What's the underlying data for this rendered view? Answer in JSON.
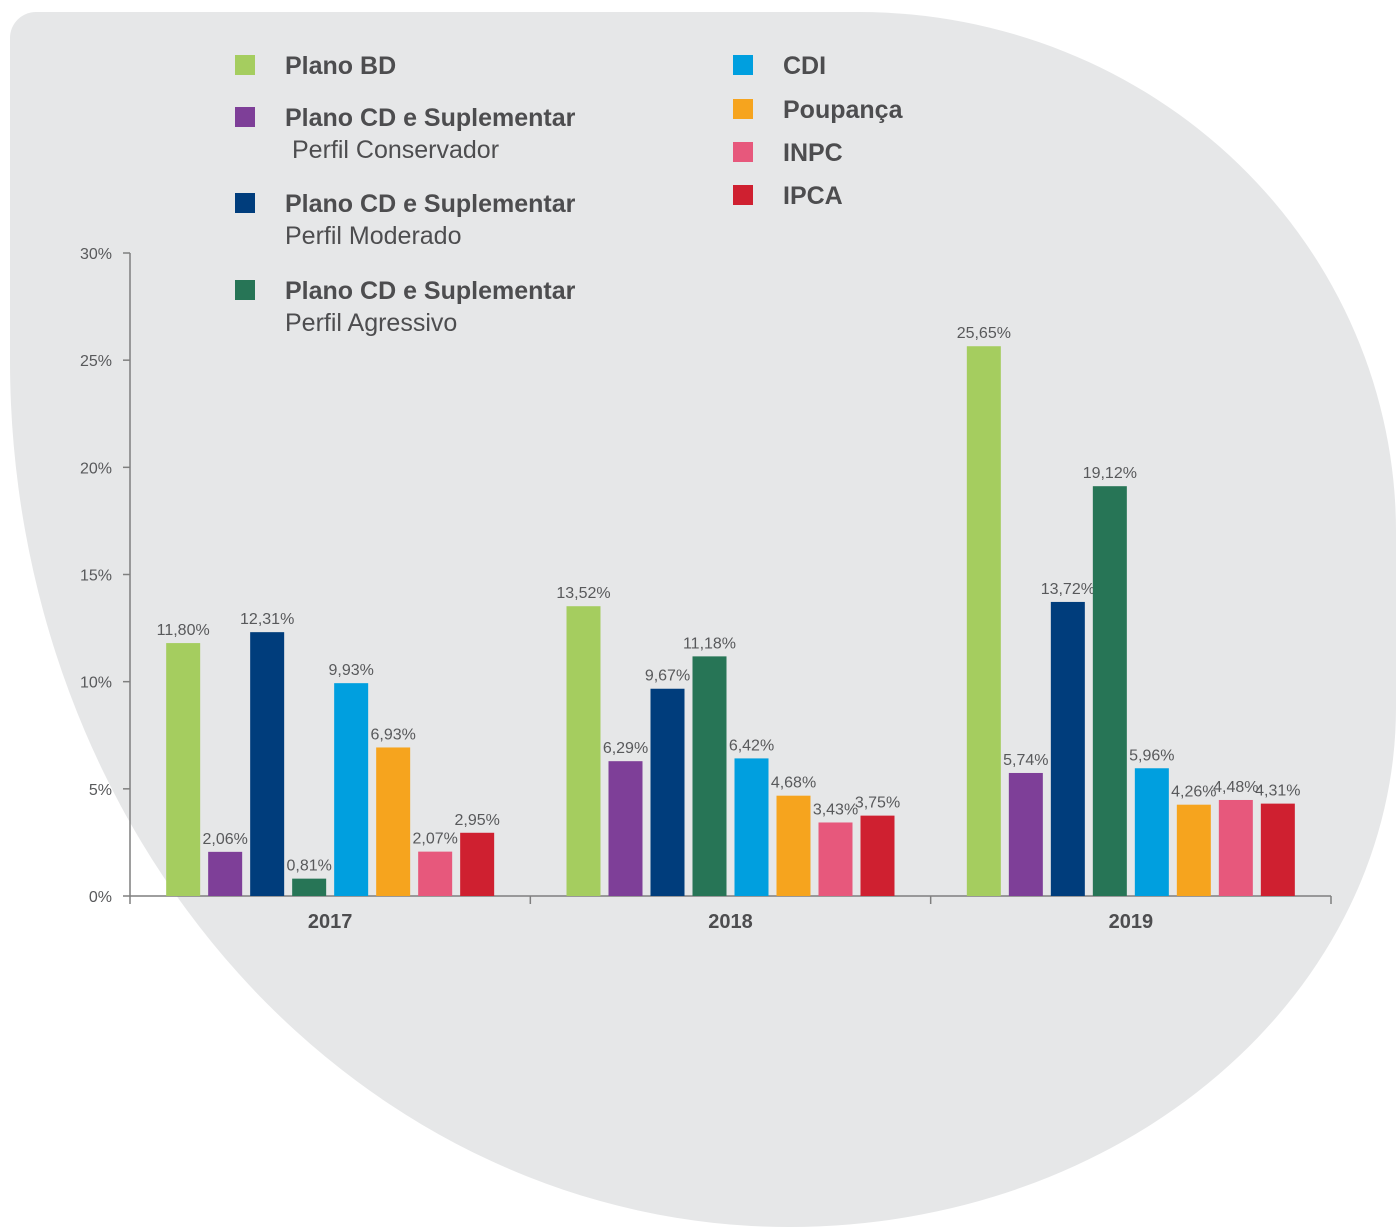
{
  "chart_data": {
    "type": "bar",
    "categories": [
      "2017",
      "2018",
      "2019"
    ],
    "series": [
      {
        "name": "Plano BD",
        "subtitle": "",
        "color": "#a5cd5f",
        "values": [
          11.8,
          13.52,
          25.65
        ],
        "labels": [
          "11,80%",
          "13,52%",
          "25,65%"
        ]
      },
      {
        "name": "Plano CD e Suplementar",
        "subtitle": "Perfil Conservador",
        "color": "#7e3f98",
        "values": [
          2.06,
          6.29,
          5.74
        ],
        "labels": [
          "2,06%",
          "6,29%",
          "5,74%"
        ]
      },
      {
        "name": "Plano CD e Suplementar",
        "subtitle": "Perfil Moderado",
        "color": "#003d7c",
        "values": [
          12.31,
          9.67,
          13.72
        ],
        "labels": [
          "12,31%",
          "9,67%",
          "13,72%"
        ]
      },
      {
        "name": "Plano CD e Suplementar",
        "subtitle": "Perfil Agressivo",
        "color": "#277556",
        "values": [
          0.81,
          11.18,
          19.12
        ],
        "labels": [
          "0,81%",
          "11,18%",
          "19,12%"
        ]
      },
      {
        "name": "CDI",
        "subtitle": "",
        "color": "#009fdf",
        "values": [
          9.93,
          6.42,
          5.96
        ],
        "labels": [
          "9,93%",
          "6,42%",
          "5,96%"
        ]
      },
      {
        "name": "Poupança",
        "subtitle": "",
        "color": "#f6a41e",
        "values": [
          6.93,
          4.68,
          4.26
        ],
        "labels": [
          "6,93%",
          "4,68%",
          "4,26%"
        ]
      },
      {
        "name": "INPC",
        "subtitle": "",
        "color": "#e7587c",
        "values": [
          2.07,
          3.43,
          4.48
        ],
        "labels": [
          "2,07%",
          "3,43%",
          "4,48%"
        ]
      },
      {
        "name": "IPCA",
        "subtitle": "",
        "color": "#cf2030",
        "values": [
          2.95,
          3.75,
          4.31
        ],
        "labels": [
          "2,95%",
          "3,75%",
          "4,31%"
        ]
      }
    ],
    "ylim": [
      0,
      30
    ],
    "yticks": [
      0,
      5,
      10,
      15,
      20,
      25,
      30
    ],
    "ytick_labels": [
      "0%",
      "5%",
      "10%",
      "15%",
      "20%",
      "25%",
      "30%"
    ],
    "title": "",
    "xlabel": "",
    "ylabel": "",
    "grid": false,
    "legend_position": "top"
  }
}
